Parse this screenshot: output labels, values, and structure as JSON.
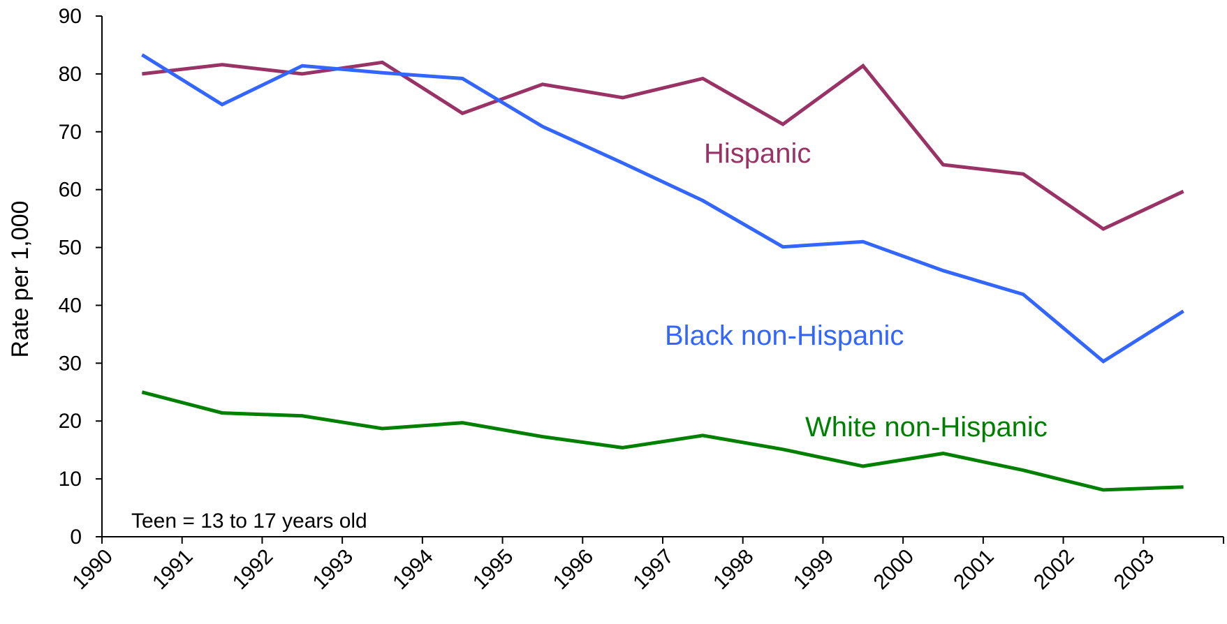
{
  "chart_data": {
    "type": "line",
    "ylabel": "Rate per 1,000",
    "xlabel": "",
    "ylim": [
      0,
      90
    ],
    "y_ticks": [
      "0",
      "10",
      "20",
      "30",
      "40",
      "50",
      "60",
      "70",
      "80",
      "90"
    ],
    "categories": [
      "1990",
      "1991",
      "1992",
      "1993",
      "1994",
      "1995",
      "1996",
      "1997",
      "1998",
      "1999",
      "2000",
      "2001",
      "2002",
      "2003"
    ],
    "note": "Teen = 13 to 17 years old",
    "grid": false,
    "series": [
      {
        "name": "Hispanic",
        "color": "#993366",
        "values": [
          80.0,
          81.6,
          80.0,
          82.0,
          73.2,
          78.2,
          75.9,
          79.2,
          71.3,
          81.4,
          64.3,
          62.7,
          53.2,
          59.7
        ]
      },
      {
        "name": "Black non-Hispanic",
        "color": "#3366FF",
        "values": [
          83.3,
          74.7,
          81.4,
          80.2,
          79.2,
          70.9,
          64.6,
          58.1,
          50.1,
          51.0,
          46.0,
          41.9,
          30.3,
          39.0
        ]
      },
      {
        "name": "White non-Hispanic",
        "color": "#008000",
        "values": [
          25.0,
          21.4,
          20.9,
          18.7,
          19.7,
          17.3,
          15.4,
          17.5,
          15.1,
          12.2,
          14.4,
          11.5,
          8.1,
          8.6
        ]
      }
    ]
  }
}
